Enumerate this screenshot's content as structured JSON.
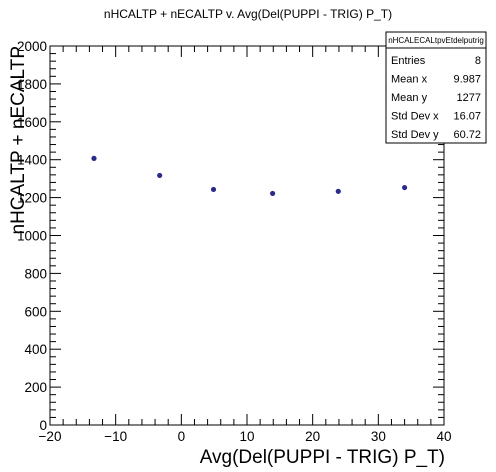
{
  "chart_data": {
    "type": "scatter",
    "title": "nHCALTP + nECALTP v. Avg(Del(PUPPI - TRIG) P_T)",
    "xlabel": "Avg(Del(PUPPI - TRIG) P_T)",
    "ylabel": "nHCALTP + nECALTP",
    "xlim": [
      -20,
      40
    ],
    "ylim": [
      0,
      2000
    ],
    "x_ticks": [
      "−20",
      "−10",
      "0",
      "10",
      "20",
      "30",
      "40"
    ],
    "x_tick_values": [
      -20,
      -10,
      0,
      10,
      20,
      30,
      40
    ],
    "y_ticks": [
      "0",
      "200",
      "400",
      "600",
      "800",
      "1000",
      "1200",
      "1400",
      "1600",
      "1800",
      "2000"
    ],
    "y_tick_values": [
      0,
      200,
      400,
      600,
      800,
      1000,
      1200,
      1400,
      1600,
      1800,
      2000
    ],
    "grid": false,
    "marker_color": "#2b2b8a",
    "points": [
      {
        "x": -13.3,
        "y": 1407
      },
      {
        "x": -3.3,
        "y": 1317
      },
      {
        "x": 4.9,
        "y": 1243
      },
      {
        "x": 13.9,
        "y": 1222
      },
      {
        "x": 23.9,
        "y": 1233
      },
      {
        "x": 34.0,
        "y": 1253
      }
    ],
    "stats_box": {
      "name": "nHCALECALtpvEtdelputrig",
      "rows": [
        {
          "label": "Entries",
          "value": "8"
        },
        {
          "label": "Mean x",
          "value": "9.987"
        },
        {
          "label": "Mean y",
          "value": "1277"
        },
        {
          "label": "Std Dev x",
          "value": "16.07"
        },
        {
          "label": "Std Dev y",
          "value": "60.72"
        }
      ]
    }
  }
}
